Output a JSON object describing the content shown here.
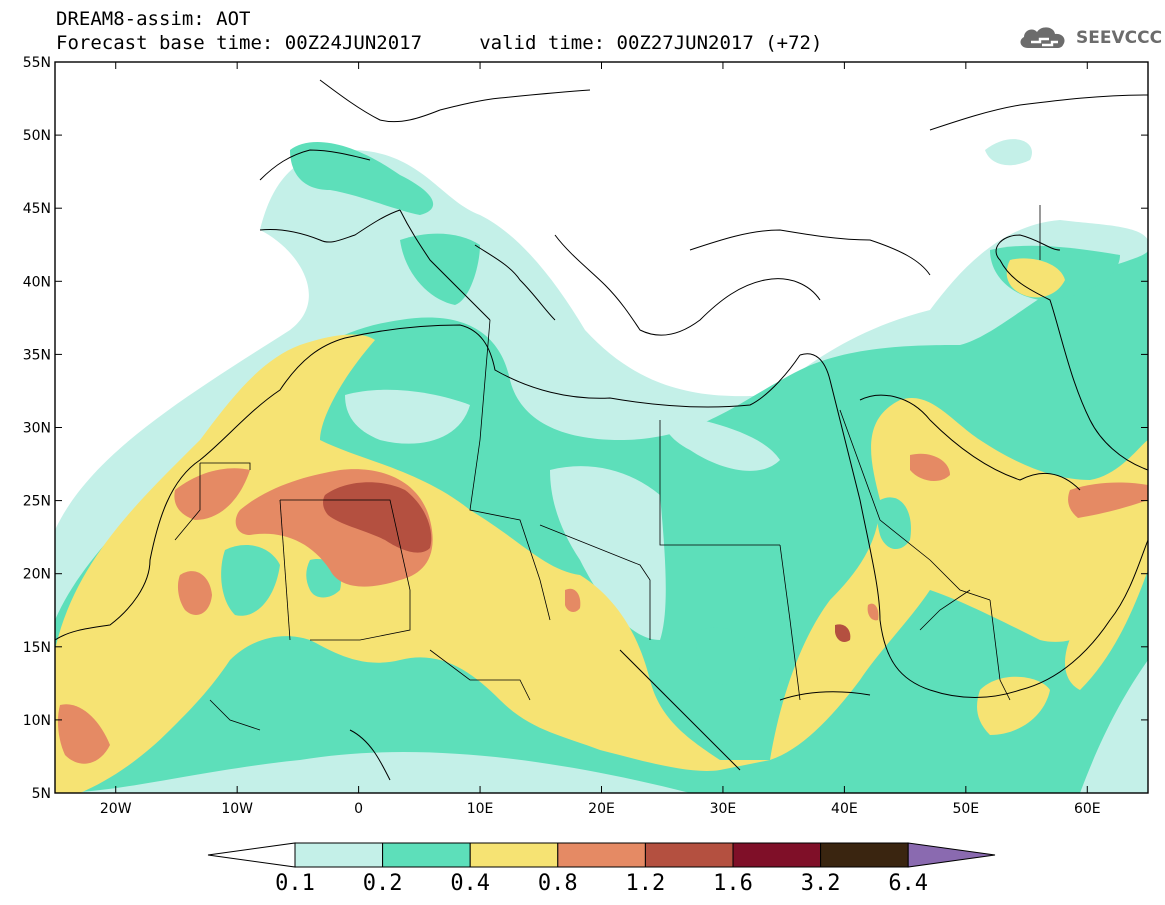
{
  "header": {
    "title": "DREAM8-assim: AOT",
    "subtitle": "Forecast base time: 00Z24JUN2017     valid time: 00Z27JUN2017 (+72)"
  },
  "logo": {
    "text": "SEEVCCC",
    "icon": "cloud-icon"
  },
  "map": {
    "lat_ticks": [
      {
        "v": 55,
        "label": "55N"
      },
      {
        "v": 50,
        "label": "50N"
      },
      {
        "v": 45,
        "label": "45N"
      },
      {
        "v": 40,
        "label": "40N"
      },
      {
        "v": 35,
        "label": "35N"
      },
      {
        "v": 30,
        "label": "30N"
      },
      {
        "v": 25,
        "label": "25N"
      },
      {
        "v": 20,
        "label": "20N"
      },
      {
        "v": 15,
        "label": "15N"
      },
      {
        "v": 10,
        "label": "10N"
      },
      {
        "v": 5,
        "label": "5N"
      }
    ],
    "lon_ticks": [
      {
        "v": -20,
        "label": "20W"
      },
      {
        "v": -10,
        "label": "10W"
      },
      {
        "v": 0,
        "label": "0"
      },
      {
        "v": 10,
        "label": "10E"
      },
      {
        "v": 20,
        "label": "20E"
      },
      {
        "v": 30,
        "label": "30E"
      },
      {
        "v": 40,
        "label": "40E"
      },
      {
        "v": 50,
        "label": "50E"
      },
      {
        "v": 60,
        "label": "60E"
      }
    ],
    "lon_range": [
      -25,
      65
    ],
    "lat_range": [
      5,
      55
    ]
  },
  "colorbar": {
    "labels": [
      "0.1",
      "0.2",
      "0.4",
      "0.8",
      "1.2",
      "1.6",
      "3.2",
      "6.4"
    ],
    "colors": [
      "#ffffff",
      "#c4f0e8",
      "#5ddfba",
      "#f6e373",
      "#e58a64",
      "#b45040",
      "#7f0f28",
      "#3a2510",
      "#8a6ab0"
    ]
  }
}
